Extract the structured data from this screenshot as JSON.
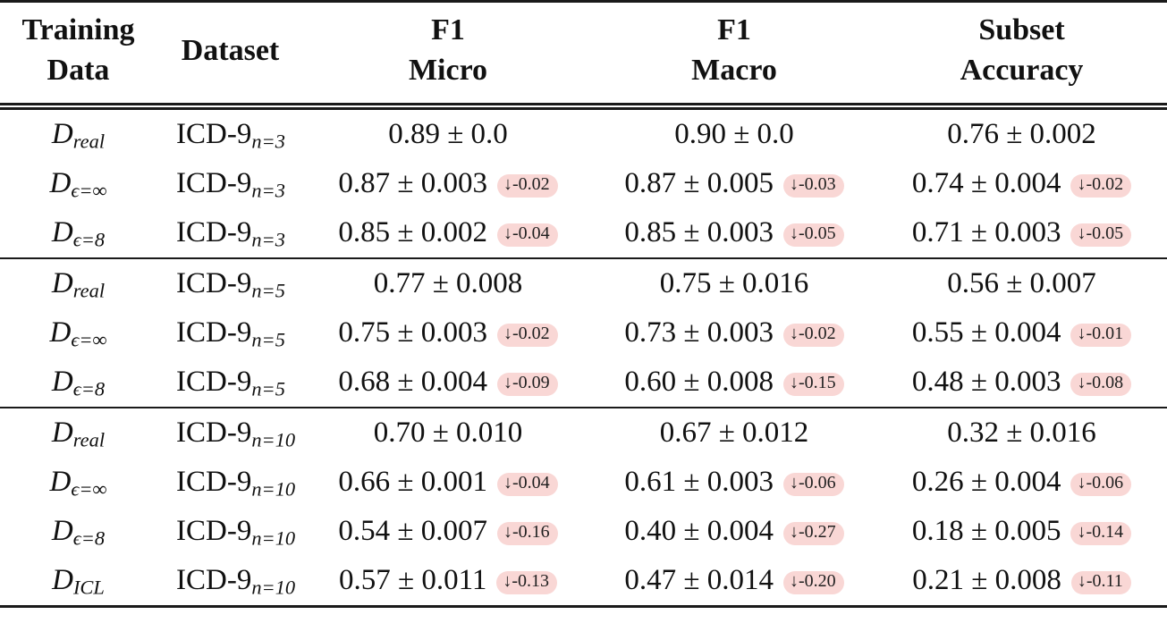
{
  "colors": {
    "page_background": "#ffffff",
    "rule": "#1a1a1a",
    "badge_background": "#f9d7d5",
    "badge_text": "#1f1f1f"
  },
  "icons": {
    "down_arrow": "↓"
  },
  "header": {
    "training_data": {
      "line1": "Training",
      "line2": "Data"
    },
    "dataset": "Dataset",
    "f1_micro": {
      "line1": "F1",
      "line2": "Micro"
    },
    "f1_macro": {
      "line1": "F1",
      "line2": "Macro"
    },
    "subset_accuracy": {
      "line1": "Subset",
      "line2": "Accuracy"
    }
  },
  "rows": [
    {
      "training": {
        "base": "D",
        "sub": "real"
      },
      "dataset": {
        "base": "ICD-9",
        "sub": "n=3"
      },
      "f1_micro": {
        "value": "0.89 ± 0.0"
      },
      "f1_macro": {
        "value": "0.90 ± 0.0"
      },
      "subset_accuracy": {
        "value": "0.76 ± 0.002"
      }
    },
    {
      "training": {
        "base": "D",
        "sub": "ϵ=∞"
      },
      "dataset": {
        "base": "ICD-9",
        "sub": "n=3"
      },
      "f1_micro": {
        "value": "0.87 ± 0.003",
        "delta": "-0.02"
      },
      "f1_macro": {
        "value": "0.87 ± 0.005",
        "delta": "-0.03"
      },
      "subset_accuracy": {
        "value": "0.74 ± 0.004",
        "delta": "-0.02"
      }
    },
    {
      "training": {
        "base": "D",
        "sub": "ϵ=8"
      },
      "dataset": {
        "base": "ICD-9",
        "sub": "n=3"
      },
      "f1_micro": {
        "value": "0.85 ± 0.002",
        "delta": "-0.04"
      },
      "f1_macro": {
        "value": "0.85 ± 0.003",
        "delta": "-0.05"
      },
      "subset_accuracy": {
        "value": "0.71 ± 0.003",
        "delta": "-0.05"
      }
    },
    {
      "training": {
        "base": "D",
        "sub": "real"
      },
      "dataset": {
        "base": "ICD-9",
        "sub": "n=5"
      },
      "f1_micro": {
        "value": "0.77 ± 0.008"
      },
      "f1_macro": {
        "value": "0.75 ± 0.016"
      },
      "subset_accuracy": {
        "value": "0.56 ± 0.007"
      }
    },
    {
      "training": {
        "base": "D",
        "sub": "ϵ=∞"
      },
      "dataset": {
        "base": "ICD-9",
        "sub": "n=5"
      },
      "f1_micro": {
        "value": "0.75 ± 0.003",
        "delta": "-0.02"
      },
      "f1_macro": {
        "value": "0.73 ± 0.003",
        "delta": "-0.02"
      },
      "subset_accuracy": {
        "value": "0.55 ± 0.004",
        "delta": "-0.01"
      }
    },
    {
      "training": {
        "base": "D",
        "sub": "ϵ=8"
      },
      "dataset": {
        "base": "ICD-9",
        "sub": "n=5"
      },
      "f1_micro": {
        "value": "0.68 ± 0.004",
        "delta": "-0.09"
      },
      "f1_macro": {
        "value": "0.60 ± 0.008",
        "delta": "-0.15"
      },
      "subset_accuracy": {
        "value": "0.48 ± 0.003",
        "delta": "-0.08"
      }
    },
    {
      "training": {
        "base": "D",
        "sub": "real"
      },
      "dataset": {
        "base": "ICD-9",
        "sub": "n=10"
      },
      "f1_micro": {
        "value": "0.70 ± 0.010"
      },
      "f1_macro": {
        "value": "0.67 ± 0.012"
      },
      "subset_accuracy": {
        "value": "0.32 ± 0.016"
      }
    },
    {
      "training": {
        "base": "D",
        "sub": "ϵ=∞"
      },
      "dataset": {
        "base": "ICD-9",
        "sub": "n=10"
      },
      "f1_micro": {
        "value": "0.66 ± 0.001",
        "delta": "-0.04"
      },
      "f1_macro": {
        "value": "0.61 ± 0.003",
        "delta": "-0.06"
      },
      "subset_accuracy": {
        "value": "0.26 ± 0.004",
        "delta": "-0.06"
      }
    },
    {
      "training": {
        "base": "D",
        "sub": "ϵ=8"
      },
      "dataset": {
        "base": "ICD-9",
        "sub": "n=10"
      },
      "f1_micro": {
        "value": "0.54 ± 0.007",
        "delta": "-0.16"
      },
      "f1_macro": {
        "value": "0.40 ± 0.004",
        "delta": "-0.27"
      },
      "subset_accuracy": {
        "value": "0.18 ± 0.005",
        "delta": "-0.14"
      }
    },
    {
      "training": {
        "base": "D",
        "sub": "ICL"
      },
      "dataset": {
        "base": "ICD-9",
        "sub": "n=10"
      },
      "f1_micro": {
        "value": "0.57 ± 0.011",
        "delta": "-0.13"
      },
      "f1_macro": {
        "value": "0.47 ± 0.014",
        "delta": "-0.20"
      },
      "subset_accuracy": {
        "value": "0.21 ± 0.008",
        "delta": "-0.11"
      }
    }
  ]
}
